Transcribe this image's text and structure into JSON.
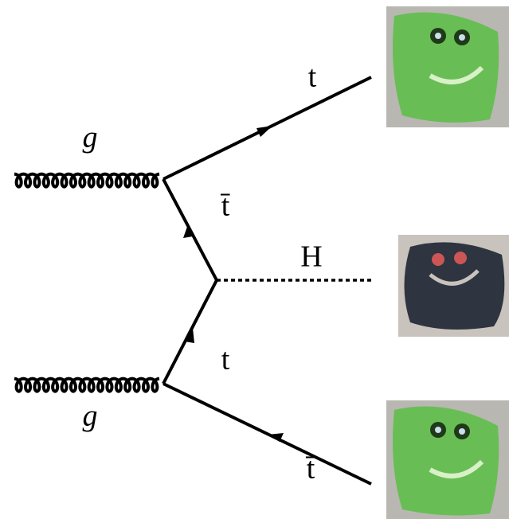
{
  "labels": {
    "gluon_top": "g",
    "gluon_bottom": "g",
    "top_out": "t",
    "antitop_internal": "t̄",
    "higgs": "H",
    "top_internal": "t",
    "antitop_out": "t̄"
  }
}
